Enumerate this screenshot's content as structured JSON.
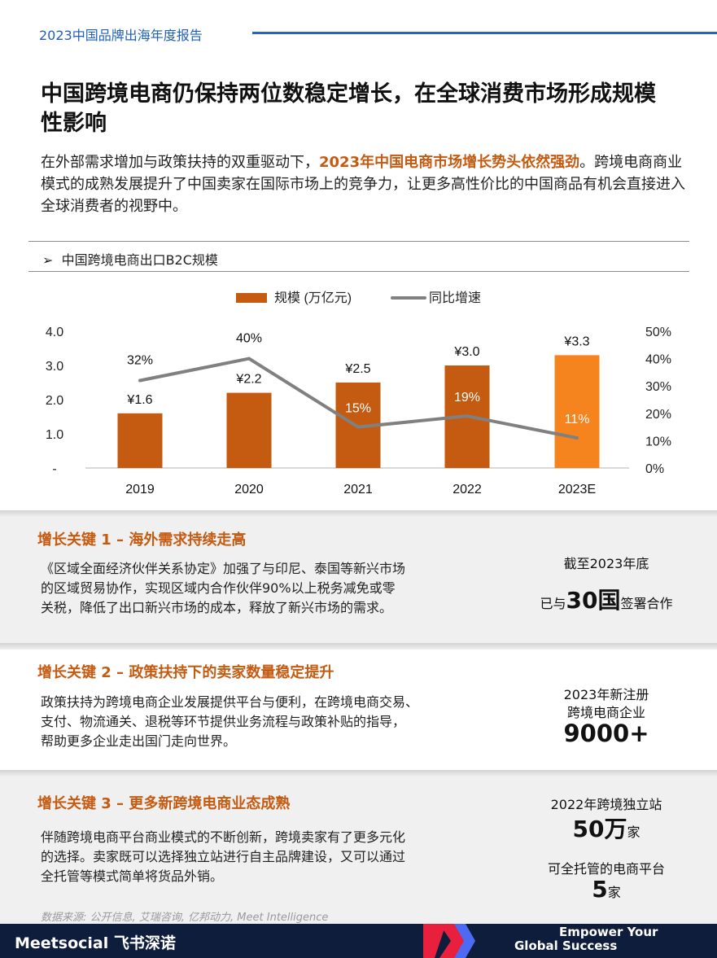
{
  "header": {
    "report_title": "2023中国品牌出海年度报告"
  },
  "title": "中国跨境电商仍保持两位数稳定增长，在全球消费市场形成规模性影响",
  "intro": {
    "part1": "在外部需求增加与政策扶持的双重驱动下，",
    "highlight": "2023年中国电商市场增长势头依然强劲",
    "part2": "。跨境电商商业模式的成熟发展提升了中国卖家在国际市场上的竞争力，让更多高性价比的中国商品有机会直接进入全球消费者的视野中。"
  },
  "section": {
    "marker": "➢",
    "title": "中国跨境电商出口B2C规模"
  },
  "chart_data": {
    "type": "bar",
    "categories": [
      "2019",
      "2020",
      "2021",
      "2022",
      "2023E"
    ],
    "series": [
      {
        "name": "规模 (万亿元)",
        "type": "bar",
        "values": [
          1.6,
          2.2,
          2.5,
          3.0,
          3.3
        ],
        "labels": [
          "¥1.6",
          "¥2.2",
          "¥2.5",
          "¥3.0",
          "¥3.3"
        ]
      },
      {
        "name": "同比增速",
        "type": "line",
        "values": [
          32,
          40,
          15,
          19,
          11
        ],
        "labels": [
          "32%",
          "40%",
          "15%",
          "19%",
          "11%"
        ]
      }
    ],
    "y_left_ticks": [
      "-",
      "1.0",
      "2.0",
      "3.0",
      "4.0"
    ],
    "y_left_lim": [
      0,
      4.0
    ],
    "y_right_ticks": [
      "0%",
      "10%",
      "20%",
      "30%",
      "40%",
      "50%"
    ],
    "y_right_lim": [
      0,
      50
    ],
    "colors": {
      "bar": "#c55a11",
      "bar_highlight": "#f5841f",
      "line": "#808080"
    },
    "legend_position": "top-center"
  },
  "keys": [
    {
      "heading": "增长关键 1 – 海外需求持续走高",
      "lines": [
        "《区域全面经济伙伴关系协定》加强了与印尼、泰国等新兴市场",
        "的区域贸易协作，实现区域内合作伙伴90%以上税务减免或零",
        "关税，降低了出口新兴市场的成本，释放了新兴市场的需求。"
      ],
      "stat_line1": "截至2023年底",
      "stat_pre": "已与",
      "stat_big": "30国",
      "stat_post": "签署合作"
    },
    {
      "heading": "增长关键 2 – 政策扶持下的卖家数量稳定提升",
      "lines": [
        "政策扶持为跨境电商企业发展提供平台与便利，在跨境电商交易、",
        "支付、物流通关、退税等环节提供业务流程与政策补贴的指导，",
        "帮助更多企业走出国门走向世界。"
      ],
      "stat_line1": "2023年新注册",
      "stat_line2": "跨境电商企业",
      "stat_big": "9000+"
    },
    {
      "heading": "增长关键 3 – 更多新跨境电商业态成熟",
      "lines": [
        "伴随跨境电商平台商业模式的不断创新，跨境卖家有了更多元化",
        "的选择。卖家既可以选择独立站进行自主品牌建设，又可以通过",
        "全托管等模式简单将货品外销。"
      ],
      "stat_line1": "2022年跨境独立站",
      "stat_big": "50万",
      "stat_unit": "家",
      "stat_line2": "可全托管的电商平台",
      "stat_big2": "5",
      "stat_unit2": "家"
    }
  ],
  "source": "数据来源: 公开信息, 艾瑞咨询, 亿邦动力, Meet Intelligence",
  "footer": {
    "brand": "Meetsocial 飞书深诺",
    "slogan_line1": "Empower Your",
    "slogan_line2": "Global Success"
  }
}
